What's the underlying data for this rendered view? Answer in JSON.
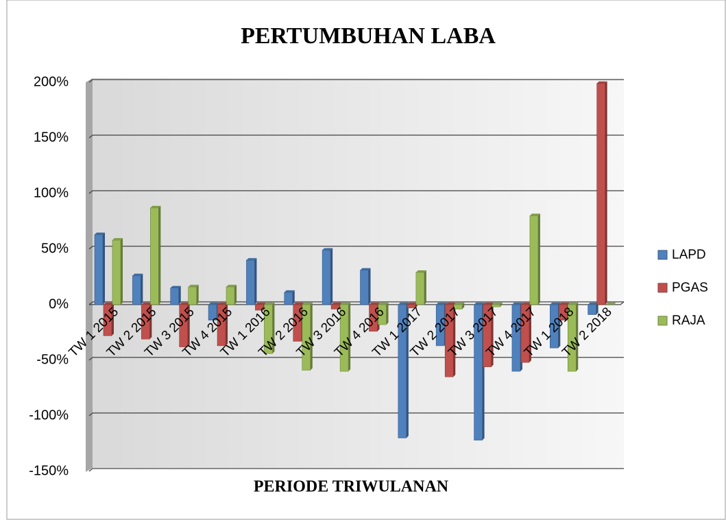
{
  "chart_data": {
    "type": "bar",
    "title": "PERTUMBUHAN LABA",
    "x_label": "PERIODE TRIWULANAN",
    "categories": [
      "TW 1 2015",
      "TW 2 2015",
      "TW 3 2015",
      "TW 4 2015",
      "TW 1 2016",
      "TW 2 2016",
      "TW 3 2016",
      "TW 4 2016",
      "TW 1 2017",
      "TW 2 2017",
      "TW 3 2017",
      "TW 4 2017",
      "TW 1 2018",
      "TW 2 2018"
    ],
    "series": [
      {
        "name": "LAPD",
        "color": "#4f81bd",
        "values": [
          63,
          26,
          15,
          -14,
          40,
          11,
          49,
          31,
          -120,
          -37,
          -122,
          -60,
          -39,
          -9
        ]
      },
      {
        "name": "PGAS",
        "color": "#c0504d",
        "values": [
          -28,
          -31,
          -38,
          -37,
          -5,
          -33,
          -4,
          -24,
          -3,
          -65,
          -56,
          -52,
          -14,
          199
        ]
      },
      {
        "name": "RAJA",
        "color": "#9bbb59",
        "values": [
          58,
          87,
          16,
          16,
          -44,
          -59,
          -60,
          -18,
          29,
          -4,
          -2,
          80,
          -60,
          0
        ]
      }
    ],
    "ylim": [
      -150,
      200
    ],
    "yticks": [
      {
        "value": -150,
        "label": "-150%"
      },
      {
        "value": -100,
        "label": "-100%"
      },
      {
        "value": -50,
        "label": "-50%"
      },
      {
        "value": 0,
        "label": "0%"
      },
      {
        "value": 50,
        "label": "50%"
      },
      {
        "value": 100,
        "label": "100%"
      },
      {
        "value": 150,
        "label": "150%"
      },
      {
        "value": 200,
        "label": "200%"
      }
    ],
    "grid": true,
    "legend": "right"
  }
}
